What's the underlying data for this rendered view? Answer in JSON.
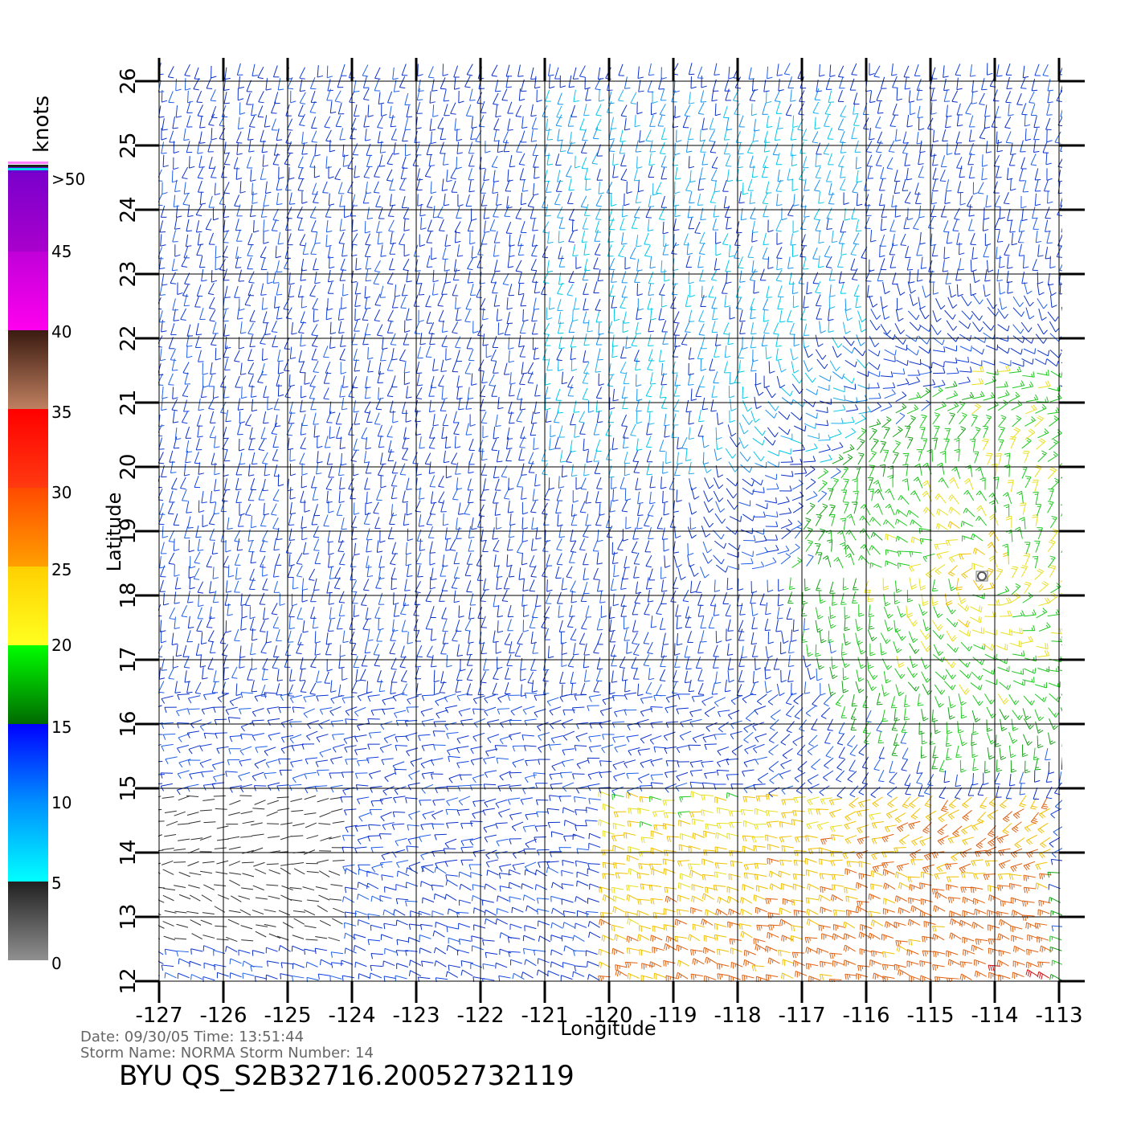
{
  "colorbar": {
    "unit": "knots",
    "tick_labels": [
      ">50",
      "45",
      "40",
      "35",
      "30",
      "25",
      "20",
      "15",
      "10",
      "5",
      "0"
    ],
    "bands": [
      {
        "label": ">50",
        "from": 50,
        "to": 55,
        "color_top": "#5a00c8",
        "color_bottom": "#6a00d0"
      },
      {
        "label": "45",
        "from": 45,
        "to": 50,
        "color_top": "#7a00cc",
        "color_bottom": "#aa00cc"
      },
      {
        "label": "40",
        "from": 40,
        "to": 45,
        "color_top": "#c000d8",
        "color_bottom": "#ff00ee"
      },
      {
        "label": "35",
        "from": 35,
        "to": 40,
        "color_top": "#3a1a10",
        "color_bottom": "#c08060"
      },
      {
        "label": "30",
        "from": 30,
        "to": 35,
        "color_top": "#ff0000",
        "color_bottom": "#ff3a10"
      },
      {
        "label": "25",
        "from": 25,
        "to": 30,
        "color_top": "#ff4a00",
        "color_bottom": "#ffa000"
      },
      {
        "label": "20",
        "from": 20,
        "to": 25,
        "color_top": "#ffd000",
        "color_bottom": "#ffff20"
      },
      {
        "label": "15",
        "from": 15,
        "to": 20,
        "color_top": "#00ff00",
        "color_bottom": "#006a00"
      },
      {
        "label": "10",
        "from": 10,
        "to": 15,
        "color_top": "#0000ff",
        "color_bottom": "#0090ff"
      },
      {
        "label": "5",
        "from": 5,
        "to": 10,
        "color_top": "#0090ff",
        "color_bottom": "#00ffff"
      },
      {
        "label": "0",
        "from": 0,
        "to": 5,
        "color_top": "#202020",
        "color_bottom": "#909090"
      }
    ]
  },
  "map": {
    "xlabel": "Longitude",
    "ylabel": "Latitude",
    "lon_ticks": [
      "-127",
      "-126",
      "-125",
      "-124",
      "-123",
      "-122",
      "-121",
      "-120",
      "-119",
      "-118",
      "-117",
      "-116",
      "-115",
      "-114",
      "-113"
    ],
    "lat_ticks": [
      "12",
      "13",
      "14",
      "15",
      "16",
      "17",
      "18",
      "19",
      "20",
      "21",
      "22",
      "23",
      "24",
      "25",
      "26"
    ],
    "lon_range": [
      -127,
      -113
    ],
    "lat_range": [
      12,
      26
    ],
    "storm_center": {
      "lon": -114.2,
      "lat": 18.3
    },
    "wind_field": {
      "background_speed_kt": 12,
      "regions": [
        {
          "name": "north-mid",
          "lon": [
            -121,
            -116
          ],
          "lat": [
            20,
            26
          ],
          "speed_kt": 9
        },
        {
          "name": "cyclone-core",
          "lon": [
            -114.5,
            -113
          ],
          "lat": [
            19,
            21.5
          ],
          "speed_kt": 19
        },
        {
          "name": "southeast-strong",
          "lon": [
            -120,
            -113
          ],
          "lat": [
            12,
            15
          ],
          "speed_kt": 24
        },
        {
          "name": "southwest-calm",
          "lon": [
            -127,
            -124
          ],
          "lat": [
            12.5,
            15
          ],
          "speed_kt": 3
        }
      ]
    }
  },
  "footer": {
    "line1": "Date: 09/30/05   Time: 13:51:44",
    "line2": "Storm  Name:  NORMA    Storm  Number:  14",
    "file_id": "BYU  QS_S2B32716.20052732119"
  }
}
